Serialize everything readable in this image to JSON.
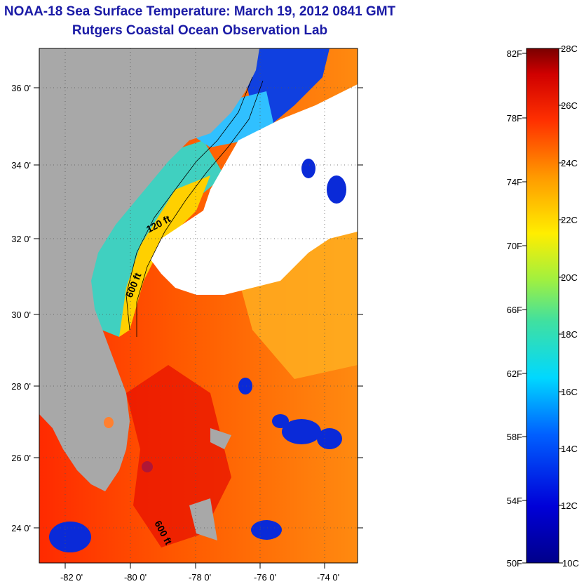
{
  "header": {
    "title": "NOAA-18 Sea Surface Temperature:  March 19, 2012 0841 GMT",
    "subtitle": "Rutgers Coastal Ocean Observation Lab"
  },
  "map": {
    "lon_ticks": [
      "-82 0'",
      "-80 0'",
      "-78 0'",
      "-76 0'",
      "-74 0'"
    ],
    "lat_ticks": [
      "36 0'",
      "34 0'",
      "32 0'",
      "30 0'",
      "28 0'",
      "26 0'",
      "24 0'"
    ],
    "contour_labels": [
      "120 ft",
      "600 ft",
      "600 ft"
    ],
    "colors": {
      "land": "#a8a8a8",
      "cloud": "#ffffff",
      "warm": "#ff5a00",
      "cold": "#0a2ad8"
    }
  },
  "colorbar": {
    "fahrenheit": [
      "82F",
      "78F",
      "74F",
      "70F",
      "66F",
      "62F",
      "58F",
      "54F",
      "50F"
    ],
    "celsius": [
      "28C",
      "26C",
      "24C",
      "22C",
      "20C",
      "18C",
      "16C",
      "14C",
      "12C",
      "10C"
    ]
  }
}
